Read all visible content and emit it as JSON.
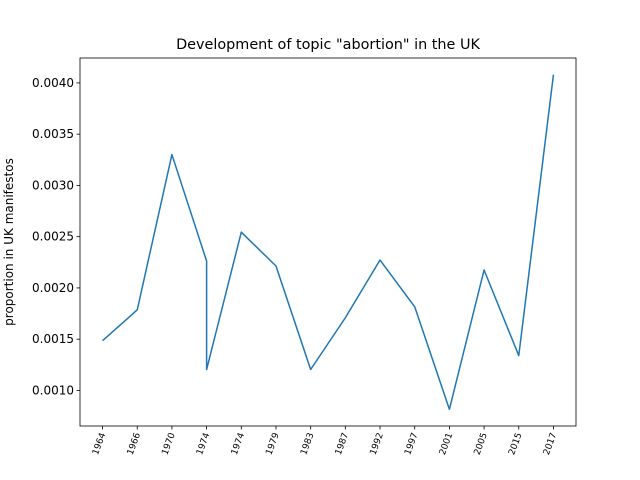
{
  "chart_data": {
    "type": "line",
    "title": "Development of topic \"abortion\" in the UK",
    "ylabel": "proportion in UK manifestos",
    "x": [
      0,
      1,
      2,
      3,
      3,
      4,
      5,
      6,
      7,
      8,
      9,
      10,
      11,
      12,
      13
    ],
    "values": [
      0.001485,
      0.001786,
      0.003301,
      0.002262,
      0.001204,
      0.002544,
      0.002214,
      0.001204,
      0.001709,
      0.002272,
      0.001816,
      0.000816,
      0.002175,
      0.00134,
      0.00408
    ],
    "color": "#1f77b4",
    "xlim": [
      -0.65,
      13.65
    ],
    "xticks": [
      {
        "value": 0,
        "label": "1964"
      },
      {
        "value": 1,
        "label": "1966"
      },
      {
        "value": 2,
        "label": "1970"
      },
      {
        "value": 3,
        "label": "1974"
      },
      {
        "value": 4,
        "label": "1974"
      },
      {
        "value": 5,
        "label": "1979"
      },
      {
        "value": 6,
        "label": "1983"
      },
      {
        "value": 7,
        "label": "1987"
      },
      {
        "value": 8,
        "label": "1992"
      },
      {
        "value": 9,
        "label": "1997"
      },
      {
        "value": 10,
        "label": "2001"
      },
      {
        "value": 11,
        "label": "2005"
      },
      {
        "value": 12,
        "label": "2015"
      },
      {
        "value": 13,
        "label": "2017"
      }
    ],
    "ylim": [
      0.000653,
      0.004243
    ],
    "yticks": [
      {
        "value": 0.001,
        "label": "0.0010"
      },
      {
        "value": 0.0015,
        "label": "0.0015"
      },
      {
        "value": 0.002,
        "label": "0.0020"
      },
      {
        "value": 0.0025,
        "label": "0.0025"
      },
      {
        "value": 0.003,
        "label": "0.0030"
      },
      {
        "value": 0.0035,
        "label": "0.0035"
      },
      {
        "value": 0.004,
        "label": "0.0040"
      }
    ]
  }
}
